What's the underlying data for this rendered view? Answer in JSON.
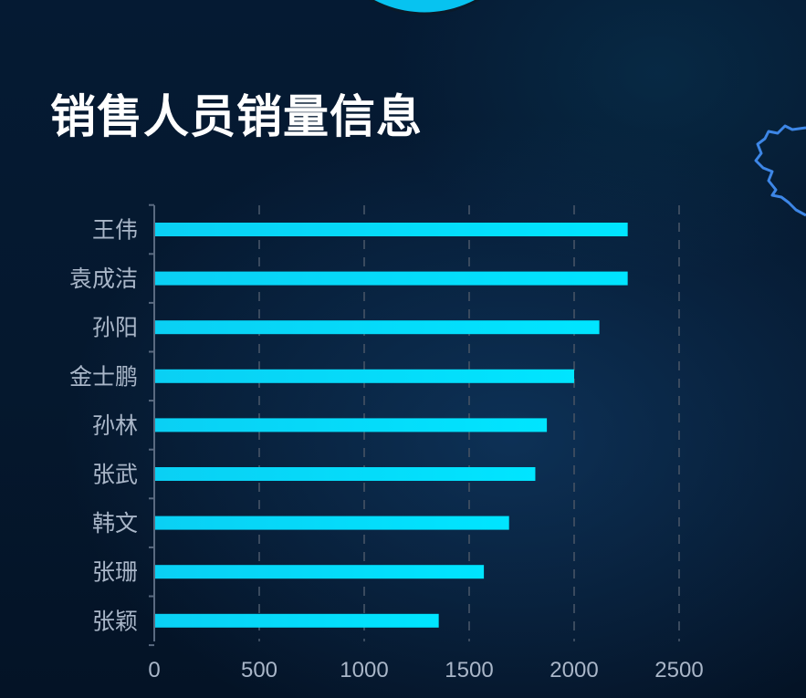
{
  "page": {
    "title": "销售人员销量信息"
  },
  "colors": {
    "bar_start": "#0ad0f4",
    "bar_end": "#00e5ff",
    "axis_text": "#a9b6c8",
    "grid": "#3a4a5e",
    "background": "#04142a",
    "top_circle": "#07c3f0",
    "map_outline": "#3d86e6"
  },
  "chart_data": {
    "type": "bar",
    "orientation": "horizontal",
    "categories": [
      "王伟",
      "袁成洁",
      "孙阳",
      "金士鹏",
      "孙林",
      "张武",
      "韩文",
      "张珊",
      "张颖"
    ],
    "values": [
      2255,
      2255,
      2120,
      2000,
      1870,
      1815,
      1690,
      1570,
      1355
    ],
    "xlim": [
      0,
      2700
    ],
    "xticks": [
      0,
      500,
      1000,
      1500,
      2000,
      2500
    ],
    "grid": "vertical-dashed",
    "legend": "none"
  }
}
